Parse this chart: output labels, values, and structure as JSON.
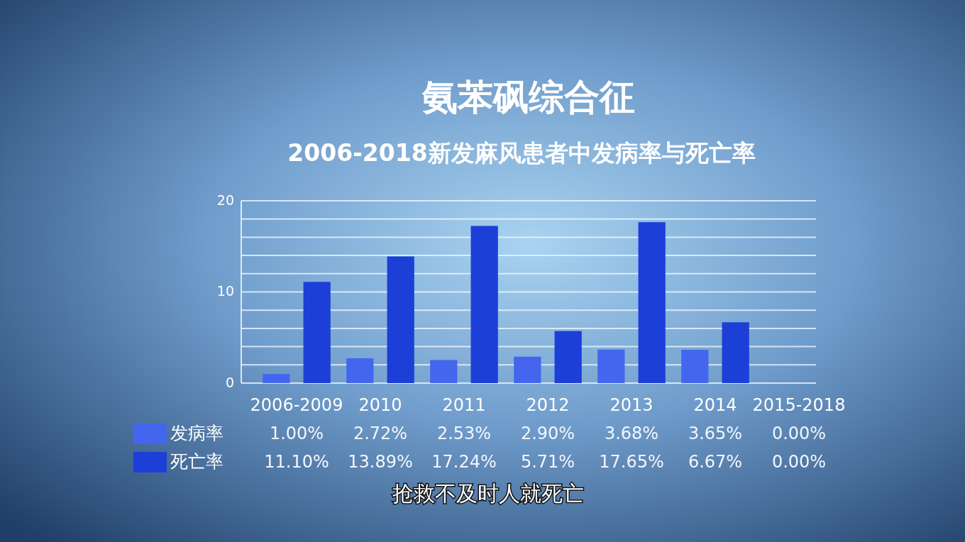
{
  "chart_data": {
    "type": "bar",
    "title": "氨苯砜综合征",
    "subtitle": "2006-2018新发麻风患者中发病率与死亡率",
    "categories": [
      "2006-2009",
      "2010",
      "2011",
      "2012",
      "2013",
      "2014",
      "2015-2018"
    ],
    "series": [
      {
        "name": "发病率",
        "color": "#4466ee",
        "values": [
          1.0,
          2.72,
          2.53,
          2.9,
          3.68,
          3.65,
          0.0
        ],
        "value_labels": [
          "1.00%",
          "2.72%",
          "2.53%",
          "2.90%",
          "3.68%",
          "3.65%",
          "0.00%"
        ]
      },
      {
        "name": "死亡率",
        "color": "#1c3fd8",
        "values": [
          11.1,
          13.89,
          17.24,
          5.71,
          17.65,
          6.67,
          0.0
        ],
        "value_labels": [
          "11.10%",
          "13.89%",
          "17.24%",
          "5.71%",
          "17.65%",
          "6.67%",
          "0.00%"
        ]
      }
    ],
    "ylim": [
      0,
      20
    ],
    "yticks": [
      0,
      {
        "value": 2,
        "label": null
      },
      {
        "value": 4,
        "label": null
      },
      {
        "value": 6,
        "label": null
      },
      {
        "value": 8,
        "label": null
      },
      10,
      {
        "value": 12,
        "label": null
      },
      {
        "value": 14,
        "label": null
      },
      {
        "value": 16,
        "label": null
      },
      {
        "value": 18,
        "label": null
      },
      20
    ],
    "grid": "y",
    "legend": "bottom left",
    "annotations": [
      "抢救不及时人就死亡"
    ]
  }
}
